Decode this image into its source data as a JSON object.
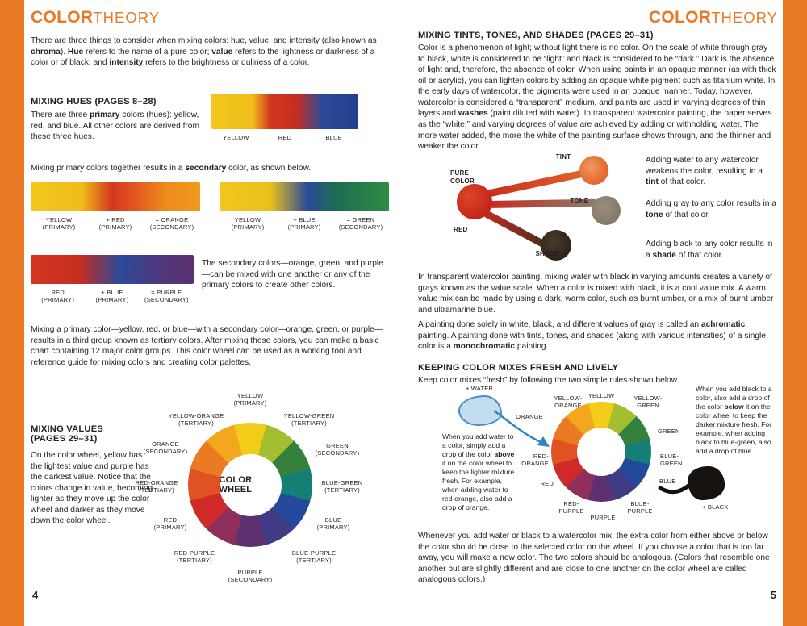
{
  "colors": {
    "accent": "#e87a25",
    "text": "#231f20",
    "page_bg": "#ffffff"
  },
  "wheel_colors": [
    "#f3cc1a",
    "#a3bf2f",
    "#34803c",
    "#157f76",
    "#23499c",
    "#3f3c85",
    "#5c3071",
    "#8e2f5c",
    "#cf2a27",
    "#e05222",
    "#ea7b22",
    "#f2a71e"
  ],
  "header": {
    "bold": "COLOR",
    "light": "THEORY"
  },
  "left_page": {
    "page_number": "4",
    "intro": [
      {
        "t": "There are three things to consider when mixing colors: hue, value, and intensity (also known as "
      },
      {
        "t": "chroma",
        "b": true
      },
      {
        "t": "). "
      },
      {
        "t": "Hue",
        "b": true
      },
      {
        "t": " refers to the name of a pure color; "
      },
      {
        "t": "value",
        "b": true
      },
      {
        "t": " refers to the lightness or darkness of a color or of black; and "
      },
      {
        "t": "intensity",
        "b": true
      },
      {
        "t": " refers to the brightness or dullness of a color."
      }
    ],
    "mixing_hues": {
      "heading": "MIXING HUES (PAGES 8–28)",
      "body": [
        {
          "t": "There are three "
        },
        {
          "t": "primary",
          "b": true
        },
        {
          "t": " colors (hues): yellow, red, and blue. All other colors are derived from these three hues."
        }
      ],
      "swatch_labels": [
        "YELLOW",
        "RED",
        "BLUE"
      ]
    },
    "secondary_intro": [
      {
        "t": "Mixing primary colors together results in a "
      },
      {
        "t": "secondary",
        "b": true
      },
      {
        "t": " color, as shown below."
      }
    ],
    "mix_orange": {
      "labels": [
        "YELLOW\n(PRIMARY)",
        "+ RED\n(PRIMARY)",
        "= ORANGE\n(SECONDARY)"
      ]
    },
    "mix_green": {
      "labels": [
        "YELLOW\n(PRIMARY)",
        "+ BLUE\n(PRIMARY)",
        "= GREEN\n(SECONDARY)"
      ]
    },
    "mix_purple": {
      "labels": [
        "RED\n(PRIMARY)",
        "+ BLUE\n(PRIMARY)",
        "= PURPLE\n(SECONDARY)"
      ]
    },
    "secondary_note": "The secondary colors—orange, green, and purple—can be mixed with one another or any of the primary colors to create other colors.",
    "tertiary_paragraph": "Mixing a primary color—yellow, red, or blue—with a secondary color—orange, green, or purple—results in a third group known as tertiary colors. After mixing these colors, you can make a basic chart containing 12 major color groups. This color wheel can be used as a working tool and reference guide for mixing colors and creating color palettes.",
    "mixing_values": {
      "heading": "MIXING VALUES\n(PAGES 29–31)",
      "body": "On the color wheel, yellow has the lightest value and purple has the darkest value. Notice that the colors change in value, becoming lighter as they move up the color wheel and darker as they move down the color wheel."
    },
    "wheel": {
      "center": "COLOR WHEEL",
      "labels": [
        "YELLOW\n(PRIMARY)",
        "YELLOW-GREEN\n(TERTIARY)",
        "GREEN\n(SECONDARY)",
        "BLUE-GREEN\n(TERTIARY)",
        "BLUE\n(PRIMARY)",
        "BLUE-PURPLE\n(TERTIARY)",
        "PURPLE\n(SECONDARY)",
        "RED-PURPLE\n(TERTIARY)",
        "RED\n(PRIMARY)",
        "RED-ORANGE\n(TERTIARY)",
        "ORANGE\n(SECONDARY)",
        "YELLOW-ORANGE\n(TERTIARY)"
      ]
    }
  },
  "right_page": {
    "page_number": "5",
    "tints": {
      "heading": "MIXING TINTS, TONES, AND SHADES (PAGES 29–31)",
      "body": [
        {
          "t": "Color is a phenomenon of light; without light there is no color. On the scale of white through gray to black, white is considered to be “light” and black is considered to be “dark.” Dark is the absence of light and, therefore, the absence of color. When using paints in an opaque manner (as with thick oil or acrylic), you can lighten colors by adding an opaque white pigment such as titanium white. In the early days of watercolor, the pigments were used in an opaque manner. Today, however, watercolor is considered a “transparent” medium, and paints are used in varying degrees of thin layers and "
        },
        {
          "t": "washes",
          "b": true
        },
        {
          "t": " (paint diluted with water). In transparent watercolor painting, the paper serves as the “white,” and varying degrees of value are achieved by adding or withholding water. The more water added, the more the white of the painting surface shows through, and the thinner and weaker the color."
        }
      ],
      "diagram": {
        "pure_color": "PURE\nCOLOR",
        "tint": "TINT",
        "tone": "TONE",
        "shade": "SHADE",
        "red": "RED"
      },
      "tint_note": [
        {
          "t": "Adding water to any watercolor weakens the color, resulting in a "
        },
        {
          "t": "tint",
          "b": true
        },
        {
          "t": " of that color."
        }
      ],
      "tone_note": [
        {
          "t": "Adding gray to any color results in a "
        },
        {
          "t": "tone",
          "b": true
        },
        {
          "t": " of that color."
        }
      ],
      "shade_note": [
        {
          "t": "Adding black to any color results in a "
        },
        {
          "t": "shade",
          "b": true
        },
        {
          "t": " of that color."
        }
      ]
    },
    "value_scale_paragraph": "In transparent watercolor painting, mixing water with black in varying amounts creates a variety of grays known as the value scale. When a color is mixed with black, it is a cool value mix. A warm value mix can be made by using a dark, warm color, such as burnt umber, or a mix of burnt umber and ultramarine blue.",
    "achromatic_paragraph": [
      {
        "t": "A painting done solely in white, black, and different values of gray is called an "
      },
      {
        "t": "achromatic",
        "b": true
      },
      {
        "t": " painting. A painting done with tints, tones, and shades (along with various intensities) of a single color is a "
      },
      {
        "t": "monochromatic",
        "b": true
      },
      {
        "t": " painting."
      }
    ],
    "fresh": {
      "heading": "KEEPING COLOR MIXES FRESH AND LIVELY",
      "intro": "Keep color mixes “fresh” by following the two simple rules shown below.",
      "water_label": "+ WATER",
      "black_label": "+ BLACK",
      "wheel_labels": {
        "yellow": "YELLOW",
        "yellow_orange": "YELLOW-\nORANGE",
        "yellow_green": "YELLOW-\nGREEN",
        "orange": "ORANGE",
        "green": "GREEN",
        "red_orange": "RED-\nORANGE",
        "blue_green": "BLUE-\nGREEN",
        "red": "RED",
        "blue": "BLUE",
        "red_purple": "RED-\nPURPLE",
        "blue_purple": "BLUE-\nPURPLE",
        "purple": "PURPLE"
      },
      "water_note": [
        {
          "t": "When you add water to a color, simply add a drop of the color "
        },
        {
          "t": "above",
          "b": true
        },
        {
          "t": " it on the color wheel to keep the lighter mixture fresh. For example, when adding water to red-orange, also add a drop of orange."
        }
      ],
      "black_note": [
        {
          "t": "When you add black to a color, also add a drop of the color "
        },
        {
          "t": "below",
          "b": true
        },
        {
          "t": " it on the color wheel to keep the darker mixture fresh. For example, when adding black to blue-green, also add a drop of blue."
        }
      ]
    },
    "closing_paragraph": "Whenever you add water or black to a watercolor mix, the extra color from either above or below the color should be close to the selected color on the wheel. If you choose a color that is too far away, you will make a new color. The two colors should be analogous. (Colors that resemble one another but are slightly different and are close to one another on the color wheel are called analogous colors.)"
  }
}
